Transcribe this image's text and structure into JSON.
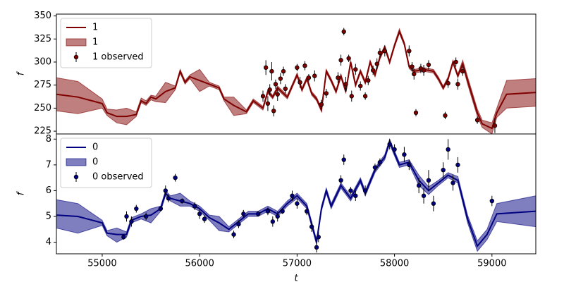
{
  "chart_data": [
    {
      "type": "line",
      "ylabel": "f",
      "legend": "upper left",
      "xlim": [
        54530,
        59450
      ],
      "ylim": [
        222,
        352
      ],
      "yticks": [
        225,
        250,
        275,
        300,
        325,
        350
      ],
      "x": [
        54530,
        54750,
        55000,
        55050,
        55150,
        55250,
        55350,
        55400,
        55450,
        55500,
        55550,
        55650,
        55750,
        55800,
        55850,
        55900,
        56000,
        56100,
        56200,
        56250,
        56350,
        56480,
        56550,
        56650,
        56700,
        56750,
        56800,
        56900,
        57000,
        57050,
        57100,
        57150,
        57200,
        57250,
        57300,
        57350,
        57400,
        57450,
        57500,
        57550,
        57600,
        57650,
        57700,
        57750,
        57800,
        57850,
        57900,
        57950,
        58000,
        58050,
        58100,
        58150,
        58200,
        58300,
        58400,
        58450,
        58500,
        58550,
        58600,
        58650,
        58700,
        58750,
        58850,
        58900,
        59000,
        59050,
        59150,
        59450
      ],
      "series": [
        {
          "name": "1",
          "color": "#800000",
          "values": [
            265,
            262,
            255,
            245,
            241,
            241,
            243,
            258,
            255,
            262,
            260,
            268,
            272,
            290,
            278,
            284,
            280,
            276,
            272,
            260,
            253,
            246,
            258,
            250,
            268,
            262,
            272,
            262,
            286,
            270,
            282,
            266,
            260,
            248,
            290,
            280,
            268,
            285,
            268,
            300,
            275,
            290,
            278,
            300,
            286,
            305,
            316,
            300,
            318,
            333,
            320,
            295,
            290,
            292,
            290,
            282,
            272,
            282,
            300,
            285,
            298,
            280,
            245,
            233,
            228,
            245,
            265,
            267
          ]
        }
      ],
      "band": {
        "name": "1",
        "color": "#800000",
        "lower": [
          247,
          244,
          250,
          242,
          234,
          232,
          241,
          256,
          253,
          259,
          257,
          256,
          270,
          288,
          276,
          282,
          268,
          274,
          270,
          258,
          242,
          244,
          256,
          248,
          266,
          260,
          270,
          260,
          284,
          268,
          280,
          264,
          258,
          246,
          288,
          278,
          266,
          283,
          266,
          298,
          273,
          288,
          276,
          298,
          284,
          303,
          314,
          298,
          316,
          331,
          318,
          293,
          288,
          290,
          288,
          280,
          270,
          280,
          298,
          283,
          296,
          276,
          241,
          229,
          222,
          240,
          250,
          252
        ],
        "upper": [
          283,
          279,
          260,
          249,
          248,
          250,
          246,
          261,
          258,
          264,
          263,
          278,
          274,
          292,
          280,
          286,
          292,
          278,
          274,
          262,
          262,
          248,
          260,
          252,
          270,
          264,
          274,
          264,
          288,
          272,
          284,
          268,
          262,
          250,
          292,
          282,
          270,
          287,
          270,
          302,
          277,
          292,
          280,
          302,
          288,
          307,
          318,
          302,
          320,
          336,
          322,
          297,
          292,
          294,
          292,
          284,
          274,
          284,
          302,
          287,
          302,
          284,
          249,
          237,
          234,
          250,
          280,
          282
        ]
      },
      "observed": {
        "name": "1 observed",
        "color": "#800000",
        "x": [
          56650,
          56680,
          56700,
          56720,
          56740,
          56760,
          56780,
          56800,
          56830,
          56860,
          56880,
          57000,
          57030,
          57080,
          57120,
          57180,
          57250,
          57300,
          57420,
          57450,
          57480,
          57500,
          57530,
          57560,
          57600,
          57650,
          57700,
          57730,
          57780,
          57820,
          57850,
          57900,
          58150,
          58180,
          58200,
          58220,
          58270,
          58300,
          58350,
          58520,
          58550,
          58630,
          58650,
          58700,
          58850,
          59030
        ],
        "values": [
          263,
          294,
          255,
          270,
          290,
          247,
          276,
          265,
          282,
          290,
          271,
          294,
          278,
          296,
          283,
          285,
          254,
          266,
          283,
          302,
          333,
          276,
          304,
          263,
          292,
          274,
          263,
          280,
          291,
          298,
          310,
          312,
          312,
          295,
          287,
          245,
          293,
          291,
          297,
          242,
          277,
          300,
          276,
          290,
          237,
          231
        ],
        "errors": [
          6,
          8,
          8,
          6,
          10,
          6,
          5,
          7,
          6,
          5,
          5,
          4,
          6,
          5,
          4,
          6,
          5,
          5,
          6,
          6,
          4,
          8,
          4,
          6,
          6,
          5,
          4,
          5,
          5,
          6,
          5,
          6,
          6,
          5,
          6,
          4,
          5,
          6,
          5,
          4,
          5,
          5,
          6,
          5,
          4,
          8
        ]
      }
    },
    {
      "type": "line",
      "ylabel": "f",
      "xlabel": "t",
      "legend": "upper left",
      "xlim": [
        54530,
        59450
      ],
      "xticks": [
        55000,
        56000,
        57000,
        58000,
        59000
      ],
      "ylim": [
        3.55,
        8.2
      ],
      "yticks": [
        4,
        5,
        6,
        7,
        8
      ],
      "x": [
        54530,
        54750,
        55000,
        55050,
        55150,
        55250,
        55300,
        55400,
        55500,
        55600,
        55650,
        55700,
        55800,
        55900,
        56000,
        56100,
        56200,
        56300,
        56400,
        56500,
        56600,
        56700,
        56800,
        56900,
        57000,
        57100,
        57200,
        57250,
        57300,
        57350,
        57450,
        57550,
        57650,
        57700,
        57800,
        57900,
        57950,
        58050,
        58150,
        58250,
        58350,
        58450,
        58550,
        58650,
        58750,
        58850,
        58950,
        59050,
        59450
      ],
      "series": [
        {
          "name": "0",
          "color": "#000080",
          "values": [
            5.05,
            5.0,
            4.75,
            4.35,
            4.3,
            4.3,
            4.85,
            5.0,
            5.05,
            5.3,
            5.9,
            5.7,
            5.6,
            5.5,
            5.3,
            4.95,
            4.75,
            4.5,
            4.8,
            5.1,
            5.1,
            5.3,
            5.1,
            5.5,
            5.8,
            5.4,
            4.0,
            5.3,
            6.0,
            5.4,
            6.2,
            5.7,
            6.4,
            5.9,
            6.8,
            7.3,
            7.9,
            7.0,
            7.1,
            6.4,
            6.0,
            6.3,
            6.6,
            6.4,
            4.9,
            3.85,
            4.3,
            5.1,
            5.2
          ]
        }
      ],
      "band": {
        "name": "0",
        "color": "#000080",
        "lower": [
          4.55,
          4.35,
          4.65,
          4.25,
          4.0,
          4.2,
          4.75,
          4.9,
          4.75,
          5.2,
          5.8,
          5.6,
          5.4,
          5.4,
          5.2,
          4.85,
          4.45,
          4.4,
          4.7,
          5.0,
          5.0,
          5.2,
          5.0,
          5.4,
          5.7,
          5.3,
          3.9,
          5.2,
          5.9,
          5.3,
          6.1,
          5.6,
          6.3,
          5.8,
          6.7,
          7.2,
          7.8,
          6.9,
          7.0,
          6.2,
          5.85,
          6.2,
          6.5,
          6.3,
          4.75,
          3.65,
          4.1,
          4.8,
          4.6
        ],
        "upper": [
          5.65,
          5.5,
          4.85,
          4.45,
          4.55,
          4.4,
          4.95,
          5.1,
          5.3,
          5.4,
          6.0,
          5.8,
          5.9,
          5.6,
          5.4,
          5.05,
          5.0,
          4.6,
          4.9,
          5.2,
          5.2,
          5.4,
          5.2,
          5.6,
          5.9,
          5.5,
          4.1,
          5.4,
          6.1,
          5.5,
          6.3,
          5.8,
          6.5,
          6.0,
          6.9,
          7.4,
          8.0,
          7.1,
          7.2,
          6.6,
          6.15,
          6.4,
          6.7,
          6.55,
          5.05,
          4.05,
          4.5,
          5.5,
          5.8
        ]
      },
      "observed": {
        "name": "0 observed",
        "color": "#000080",
        "x": [
          55220,
          55250,
          55300,
          55350,
          55450,
          55600,
          55650,
          55680,
          55750,
          55820,
          55950,
          56000,
          56050,
          56350,
          56400,
          56450,
          56600,
          56700,
          56750,
          56800,
          56850,
          56950,
          57000,
          57100,
          57150,
          57200,
          57220,
          57450,
          57480,
          57550,
          57600,
          57700,
          57800,
          57850,
          57950,
          58000,
          58100,
          58150,
          58250,
          58300,
          58350,
          58400,
          58500,
          58550,
          58600,
          58650,
          59000
        ],
        "values": [
          4.2,
          5.0,
          4.8,
          5.3,
          5.0,
          5.3,
          6.0,
          5.7,
          6.5,
          5.6,
          5.4,
          5.1,
          4.9,
          4.3,
          4.7,
          5.1,
          5.1,
          5.2,
          4.8,
          5.0,
          5.2,
          5.8,
          5.5,
          5.2,
          4.6,
          3.8,
          4.2,
          6.4,
          7.2,
          6.0,
          5.8,
          6.0,
          6.9,
          7.1,
          7.8,
          7.6,
          7.4,
          7.0,
          6.2,
          5.8,
          6.4,
          5.5,
          6.8,
          7.6,
          6.3,
          7.0,
          5.6
        ],
        "errors": [
          0.1,
          0.2,
          0.2,
          0.15,
          0.15,
          0.1,
          0.2,
          0.15,
          0.15,
          0.1,
          0.15,
          0.2,
          0.15,
          0.15,
          0.15,
          0.15,
          0.1,
          0.15,
          0.2,
          0.2,
          0.1,
          0.2,
          0.2,
          0.15,
          0.2,
          0.2,
          0.2,
          0.2,
          0.2,
          0.15,
          0.2,
          0.2,
          0.15,
          0.15,
          0.2,
          0.2,
          0.3,
          0.2,
          0.3,
          0.3,
          0.4,
          0.3,
          0.3,
          0.4,
          0.3,
          0.3,
          0.2
        ]
      }
    }
  ]
}
